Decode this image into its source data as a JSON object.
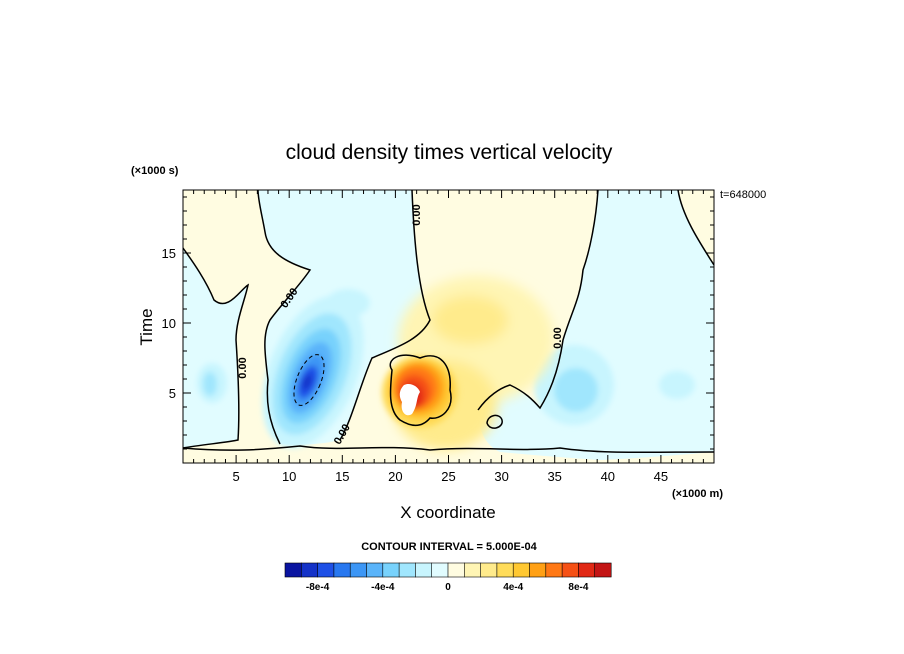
{
  "chart_data": {
    "type": "heatmap",
    "title": "cloud density times vertical velocity",
    "xlabel": "X coordinate",
    "ylabel": "Time",
    "x_unit": "(×1000 m)",
    "y_unit": "(×1000 s)",
    "time_label": "t=648000",
    "contour_interval_text": "CONTOUR INTERVAL = 5.000E-04",
    "contour_interval": 0.0005,
    "xlim": [
      0,
      50
    ],
    "ylim": [
      0,
      19.5
    ],
    "x_ticks": [
      5,
      10,
      15,
      20,
      25,
      30,
      35,
      40,
      45
    ],
    "y_ticks": [
      5,
      10,
      15
    ],
    "zero_contour_label": "0.00",
    "colorbar": {
      "levels": [
        -0.001,
        -0.0009,
        -0.0008,
        -0.0007,
        -0.0006,
        -0.0005,
        -0.0004,
        -0.0003,
        -0.0002,
        -0.0001,
        0,
        0.0001,
        0.0002,
        0.0003,
        0.0004,
        0.0005,
        0.0006,
        0.0007,
        0.0008,
        0.0009,
        0.001
      ],
      "colors": [
        "#0a14a0",
        "#1432c8",
        "#1e50e6",
        "#2878f0",
        "#3c96f5",
        "#5ab4fa",
        "#78d2fc",
        "#a0e6fd",
        "#c8f5fe",
        "#e1fcff",
        "#fffce1",
        "#fff5b4",
        "#ffeb8c",
        "#ffdc5a",
        "#ffc832",
        "#ffa014",
        "#ff7814",
        "#f55014",
        "#e12814",
        "#c31414"
      ],
      "tick_labels": [
        "-8e-4",
        "-4e-4",
        "0",
        "4e-4",
        "8e-4"
      ],
      "tick_values": [
        -0.0008,
        -0.0004,
        0,
        0.0004,
        0.0008
      ]
    },
    "features": [
      {
        "kind": "negative-core",
        "x": 11.8,
        "y": 5.8,
        "peak": -0.0008
      },
      {
        "kind": "positive-core",
        "x": 22,
        "y": 4.8,
        "peak": 0.001
      },
      {
        "kind": "weak-positive-plume",
        "x": 25,
        "y": 9,
        "peak": 0.0002
      },
      {
        "kind": "weak-negative-patch",
        "x": 36.5,
        "y": 6,
        "peak": -0.0003
      }
    ],
    "grid": false,
    "legend": "bottom colorbar"
  }
}
